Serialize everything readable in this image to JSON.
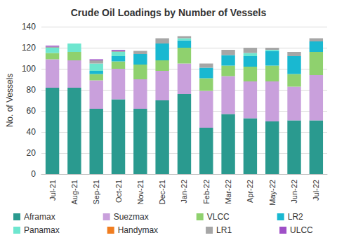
{
  "chart_data": {
    "type": "bar",
    "title": "Crude Oil Loadings by Number of Vessels",
    "y_label": "No. of Vessels",
    "stacked": true,
    "grid": true,
    "legend": "bottom",
    "categories": [
      "Jul-21",
      "Aug-21",
      "Sep-21",
      "Oct-21",
      "Nov-21",
      "Dec-21",
      "Jan-22",
      "Feb-22",
      "Mar-22",
      "Apr-22",
      "May-22",
      "Jun-22",
      "Jul-22"
    ],
    "ylim": [
      0,
      140
    ],
    "yticks": [
      0,
      20,
      40,
      60,
      80,
      100,
      120,
      140
    ],
    "series": [
      {
        "name": "Aframax",
        "color": "#2a9a8f",
        "values": [
          82,
          82,
          62,
          71,
          62,
          70,
          76,
          44,
          57,
          53,
          50,
          51,
          51
        ]
      },
      {
        "name": "Suezmax",
        "color": "#c9a0dc",
        "values": [
          27,
          26,
          27,
          29,
          28,
          28,
          29,
          35,
          36,
          35,
          38,
          32,
          43
        ]
      },
      {
        "name": "VLCC",
        "color": "#8fd16e",
        "values": [
          6,
          8,
          6,
          7,
          14,
          10,
          15,
          12,
          10,
          14,
          15,
          12,
          22
        ]
      },
      {
        "name": "LR2",
        "color": "#19b8d1",
        "values": [
          0,
          0,
          3,
          5,
          10,
          16,
          7,
          10,
          10,
          10,
          14,
          17,
          10
        ]
      },
      {
        "name": "Panamax",
        "color": "#6ee6cf",
        "values": [
          5,
          8,
          7,
          4,
          0,
          0,
          2,
          0,
          0,
          3,
          1,
          0,
          0
        ]
      },
      {
        "name": "Handymax",
        "color": "#f07d20",
        "values": [
          0,
          0,
          0,
          0,
          0,
          0,
          0,
          0,
          0,
          0,
          0,
          0,
          0
        ]
      },
      {
        "name": "LR1",
        "color": "#a6a6a6",
        "values": [
          1,
          0,
          3,
          1,
          3,
          5,
          2,
          4,
          5,
          5,
          2,
          4,
          3
        ]
      },
      {
        "name": "ULCC",
        "color": "#9f4fc7",
        "values": [
          1,
          0,
          1,
          1,
          0,
          0,
          0,
          0,
          0,
          0,
          0,
          0,
          0
        ]
      }
    ]
  }
}
